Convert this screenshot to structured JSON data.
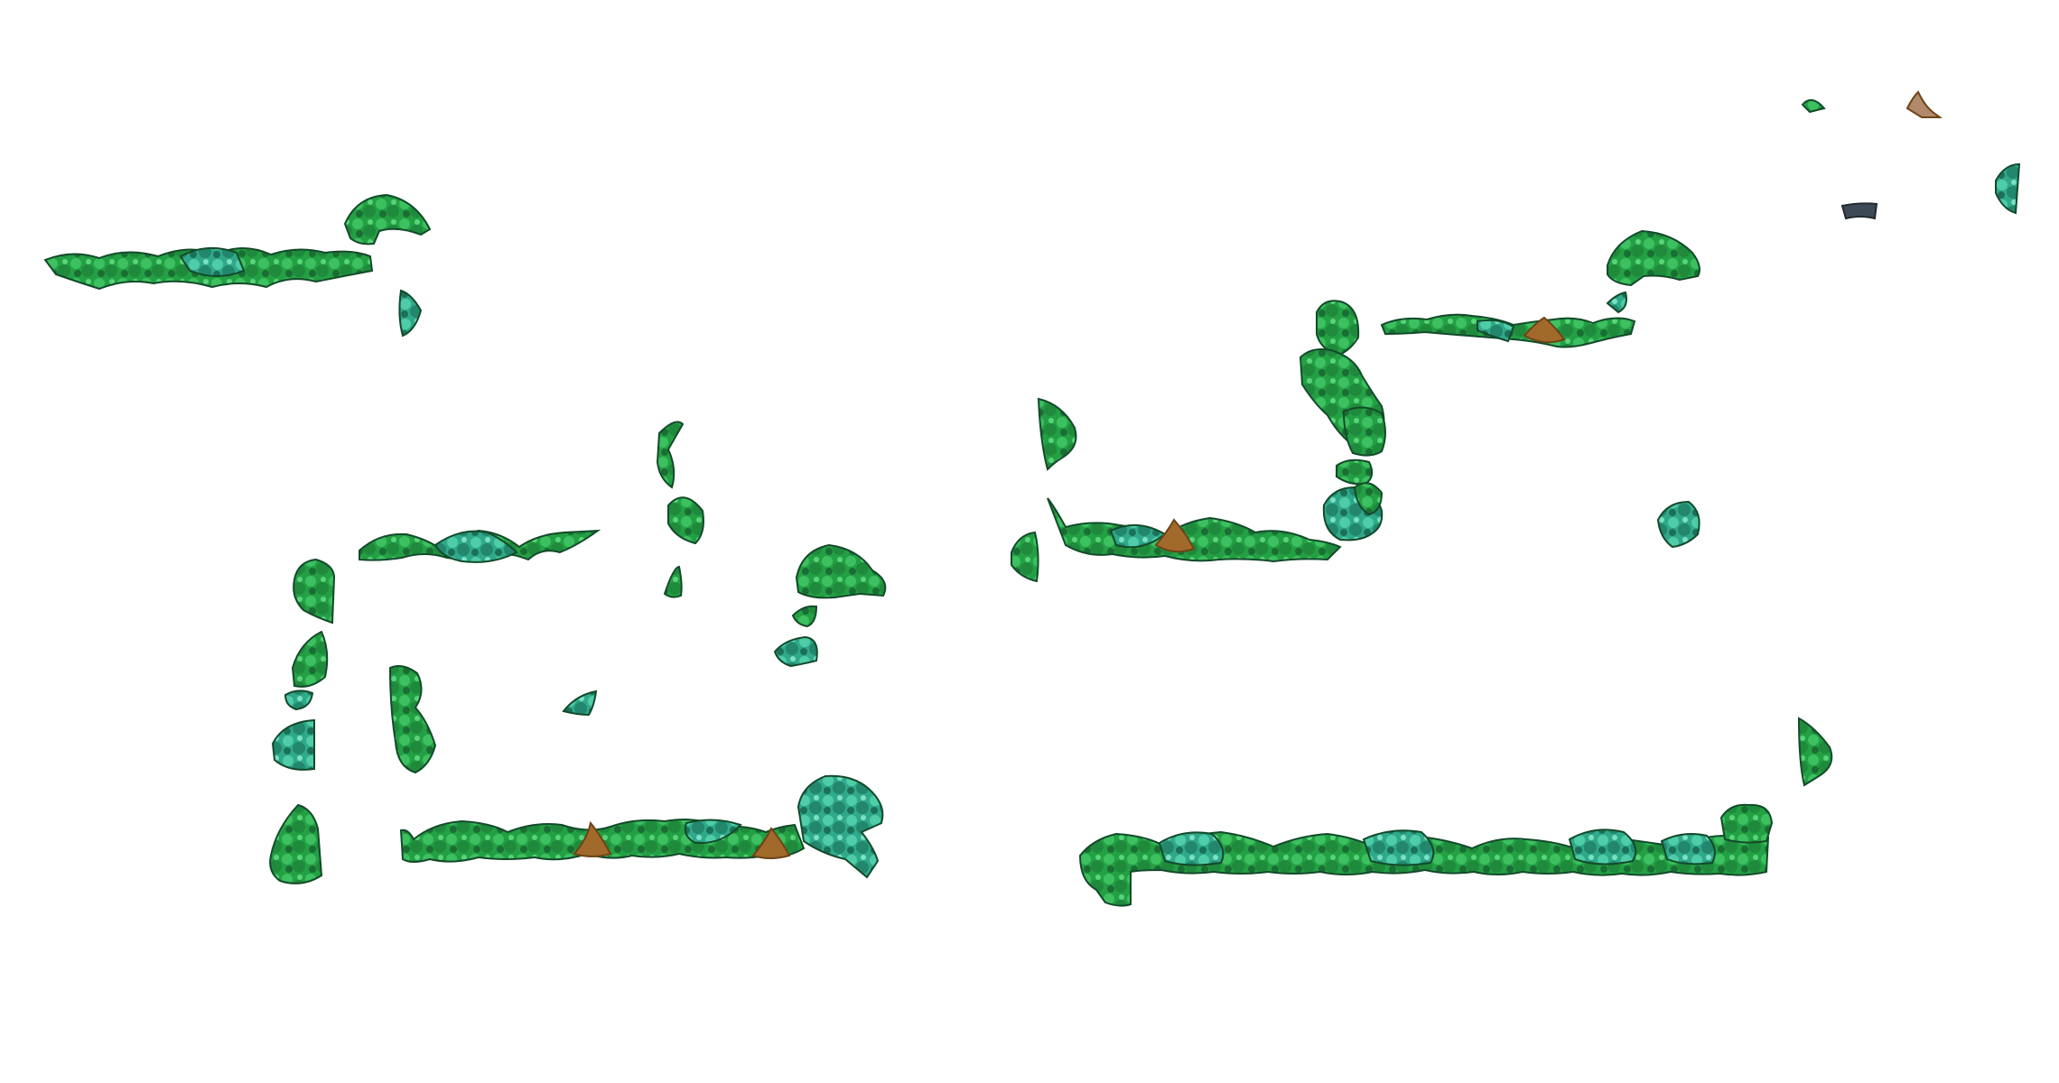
{
  "scene": {
    "background_color": "#ffffff",
    "palette": {
      "foliage_dark": "#1e6a3c",
      "foliage_mid": "#24a044",
      "foliage_light": "#3cc060",
      "foliage_teal": "#2fa98a",
      "foliage_teal_light": "#4fcca8",
      "shadow": "#134a2a",
      "trunk": "#a26a2a",
      "trunk_dark": "#6e4418",
      "rock": "#3d4a55",
      "stump": "#b08a6a"
    },
    "elements": [
      "hedge-segment",
      "tree-clump",
      "bush",
      "cone-tree",
      "rock",
      "stump"
    ]
  }
}
